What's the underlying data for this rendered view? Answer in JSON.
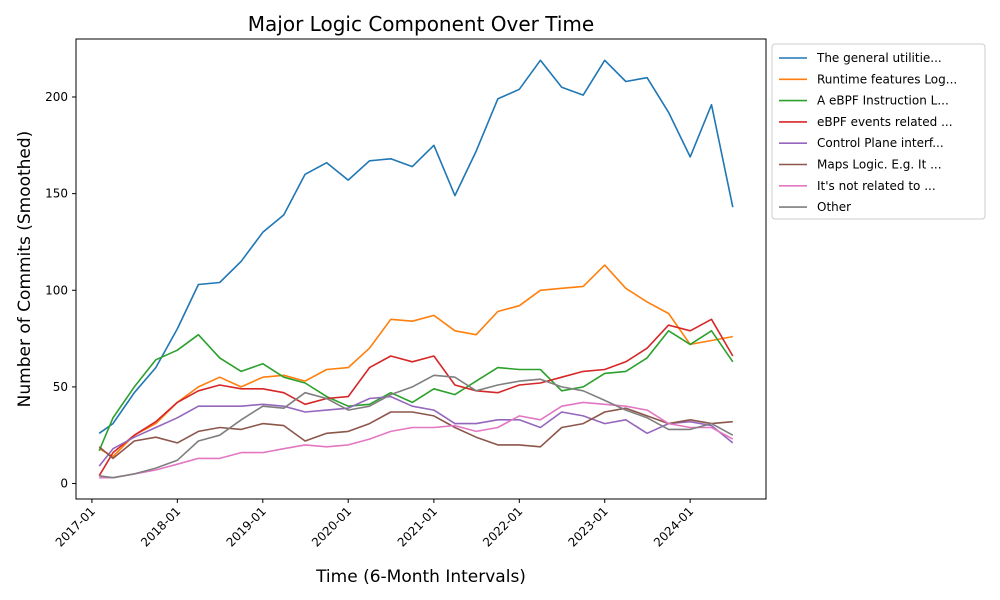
{
  "chart_data": {
    "type": "line",
    "title": "Major Logic Component Over Time",
    "xlabel": "Time (6-Month Intervals)",
    "ylabel": "Number of Commits (Smoothed)",
    "xlim": [
      "2016-10-25",
      "2024-11-20"
    ],
    "ylim": [
      -8,
      230
    ],
    "xticks": [
      "2017-01",
      "2018-01",
      "2019-01",
      "2020-01",
      "2021-01",
      "2022-01",
      "2023-01",
      "2024-01"
    ],
    "yticks": [
      0,
      50,
      100,
      150,
      200
    ],
    "grid": false,
    "legend": "outside-upper-right",
    "x": [
      "2017-02-01",
      "2017-04-01",
      "2017-07-01",
      "2017-10-01",
      "2018-01-01",
      "2018-04-01",
      "2018-07-01",
      "2018-10-01",
      "2019-01-01",
      "2019-04-01",
      "2019-07-01",
      "2019-10-01",
      "2020-01-01",
      "2020-04-01",
      "2020-07-01",
      "2020-10-01",
      "2021-01-01",
      "2021-04-01",
      "2021-07-01",
      "2021-10-01",
      "2022-01-01",
      "2022-04-01",
      "2022-07-01",
      "2022-10-01",
      "2023-01-01",
      "2023-04-01",
      "2023-07-01",
      "2023-10-01",
      "2024-01-01",
      "2024-04-01",
      "2024-07-01"
    ],
    "series": [
      {
        "name": "The general utilitie...",
        "color": "#1f77b4",
        "values": [
          26,
          31,
          47,
          60,
          80,
          103,
          104,
          115,
          130,
          139,
          160,
          166,
          157,
          167,
          168,
          164,
          175,
          149,
          172,
          199,
          204,
          219,
          205,
          201,
          219,
          208,
          210,
          192,
          169,
          196,
          143
        ]
      },
      {
        "name": "Runtime features Log...",
        "color": "#ff7f0e",
        "values": [
          18,
          14,
          25,
          31,
          42,
          50,
          55,
          50,
          55,
          56,
          53,
          59,
          60,
          70,
          85,
          84,
          87,
          79,
          77,
          89,
          92,
          100,
          101,
          102,
          113,
          101,
          94,
          88,
          72,
          74,
          76
        ]
      },
      {
        "name": "A eBPF Instruction L...",
        "color": "#2ca02c",
        "values": [
          17,
          34,
          50,
          64,
          69,
          77,
          65,
          58,
          62,
          55,
          52,
          45,
          40,
          41,
          47,
          42,
          49,
          46,
          53,
          60,
          59,
          59,
          48,
          50,
          57,
          58,
          65,
          79,
          72,
          79,
          63
        ]
      },
      {
        "name": "eBPF events related ...",
        "color": "#d62728",
        "values": [
          4,
          16,
          25,
          32,
          42,
          48,
          51,
          49,
          49,
          47,
          41,
          44,
          45,
          60,
          66,
          63,
          66,
          51,
          48,
          47,
          51,
          52,
          55,
          58,
          59,
          63,
          70,
          82,
          79,
          85,
          66
        ]
      },
      {
        "name": "Control Plane interf...",
        "color": "#9467bd",
        "values": [
          9,
          18,
          24,
          29,
          34,
          40,
          40,
          40,
          41,
          40,
          37,
          38,
          39,
          44,
          45,
          40,
          38,
          31,
          31,
          33,
          33,
          29,
          37,
          35,
          31,
          33,
          26,
          31,
          32,
          30,
          21
        ]
      },
      {
        "name": "Maps Logic. E.g. It ...",
        "color": "#8c564b",
        "values": [
          19,
          13,
          22,
          24,
          21,
          27,
          29,
          28,
          31,
          30,
          22,
          26,
          27,
          31,
          37,
          37,
          35,
          29,
          24,
          20,
          20,
          19,
          29,
          31,
          37,
          39,
          35,
          31,
          33,
          31,
          32
        ]
      },
      {
        "name": "It's not related to ...",
        "color": "#e377c2",
        "values": [
          3,
          3,
          5,
          7,
          10,
          13,
          13,
          16,
          16,
          18,
          20,
          19,
          20,
          23,
          27,
          29,
          29,
          30,
          27,
          29,
          35,
          33,
          40,
          42,
          41,
          40,
          38,
          31,
          29,
          29,
          23
        ]
      },
      {
        "name": "Other",
        "color": "#7f7f7f",
        "values": [
          4,
          3,
          5,
          8,
          12,
          22,
          25,
          33,
          40,
          39,
          47,
          44,
          38,
          40,
          46,
          50,
          56,
          55,
          48,
          51,
          53,
          54,
          50,
          48,
          43,
          38,
          34,
          28,
          28,
          31,
          25
        ]
      }
    ]
  }
}
